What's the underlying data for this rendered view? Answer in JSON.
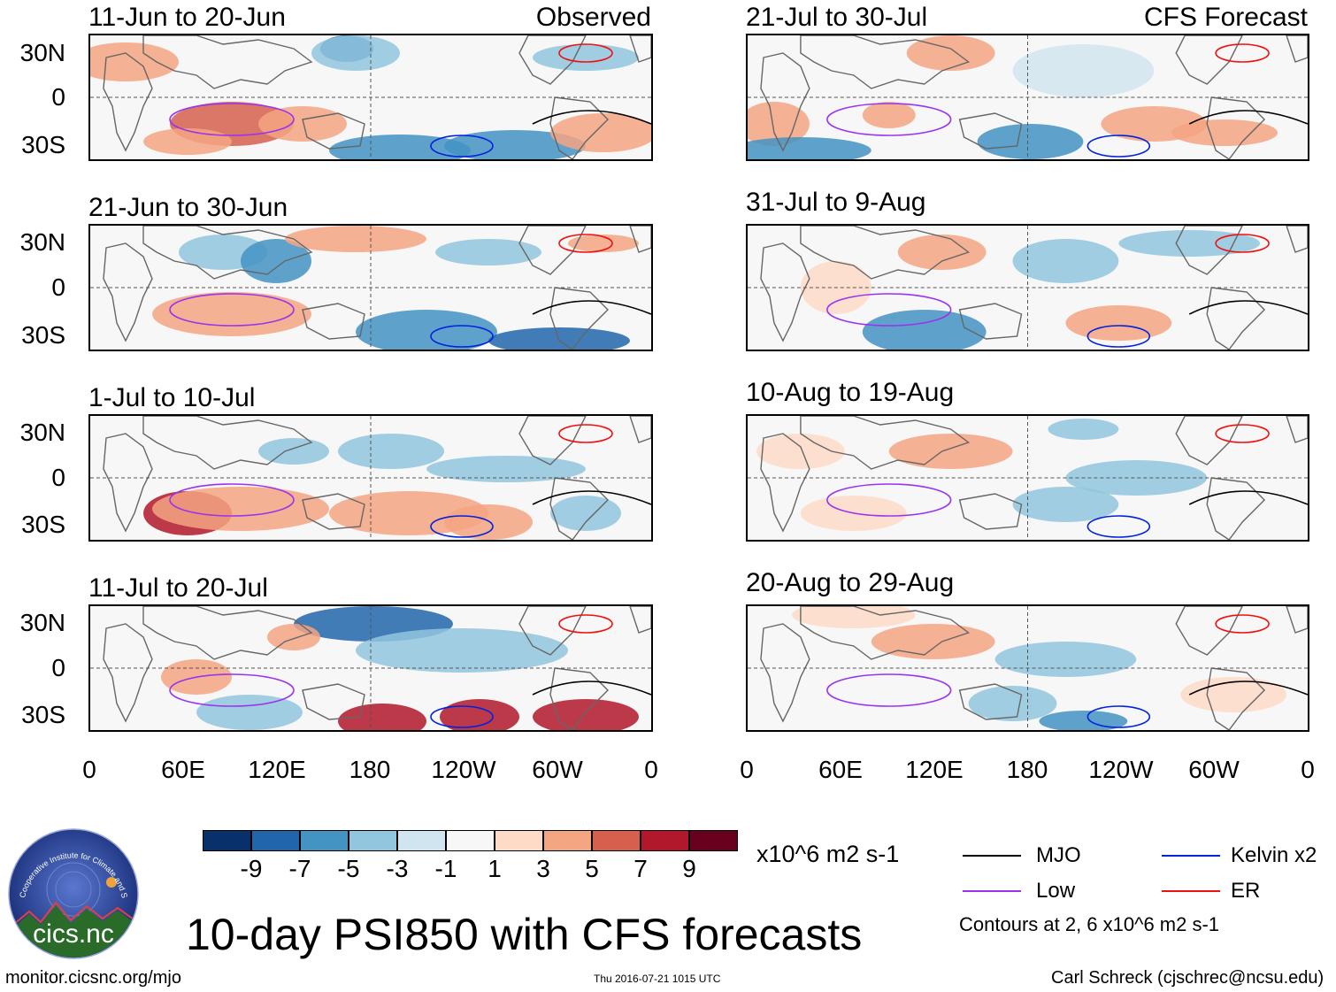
{
  "title": "10-day PSI850 with CFS forecasts",
  "left_column_label": "Observed",
  "right_column_label": "CFS Forecast",
  "panels_left": [
    {
      "period": "11-Jun to 20-Jun"
    },
    {
      "period": "21-Jun to 30-Jun"
    },
    {
      "period": "1-Jul to 10-Jul"
    },
    {
      "period": "11-Jul to 20-Jul"
    }
  ],
  "panels_right": [
    {
      "period": "21-Jul to 30-Jul"
    },
    {
      "period": "31-Jul to 9-Aug"
    },
    {
      "period": "10-Aug to 19-Aug"
    },
    {
      "period": "20-Aug to 29-Aug"
    }
  ],
  "y_ticks": [
    "30N",
    "0",
    "30S"
  ],
  "x_ticks": [
    "0",
    "60E",
    "120E",
    "180",
    "120W",
    "60W",
    "0"
  ],
  "colorbar": {
    "unit": "x10^6 m2 s-1",
    "tick_labels": [
      "-9",
      "-7",
      "-5",
      "-3",
      "-1",
      "1",
      "3",
      "5",
      "7",
      "9"
    ],
    "colors": [
      "#08306b",
      "#2166ac",
      "#4393c3",
      "#92c5de",
      "#d1e5f0",
      "#f7f7f7",
      "#fddbc7",
      "#f4a582",
      "#d6604d",
      "#b2182b",
      "#67001f"
    ]
  },
  "legend": {
    "items": [
      {
        "label": "MJO",
        "color": "#000000"
      },
      {
        "label": "Kelvin x2",
        "color": "#0022dd"
      },
      {
        "label": "Low",
        "color": "#9933ee"
      },
      {
        "label": "ER",
        "color": "#ee1111"
      }
    ],
    "contours_note": "Contours at 2, 6 x10^6 m2 s-1"
  },
  "logo_text": "cics.nc",
  "logo_ring_text": "Cooperative Institute for Climate and Satellites",
  "footer": {
    "url": "monitor.cicsnc.org/mjo",
    "timestamp": "Thu 2016-07-21 1015 UTC",
    "author": "Carl Schreck (cjschrec@ncsu.edu)"
  }
}
